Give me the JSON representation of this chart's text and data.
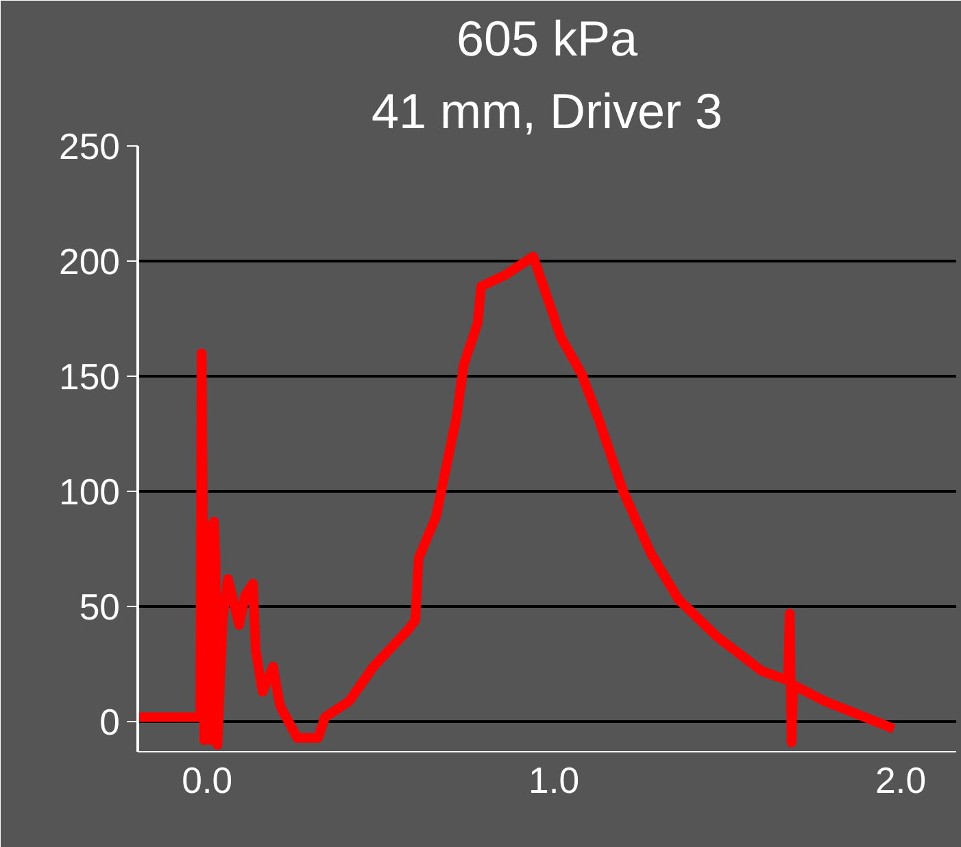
{
  "chart_data": {
    "type": "line",
    "title": "605 kPa",
    "subtitle": "41 mm, Driver 3",
    "x": [
      -0.2,
      -0.02,
      -0.016,
      -0.012,
      -0.008,
      0.0,
      0.01,
      0.02,
      0.024,
      0.03,
      0.045,
      0.06,
      0.08,
      0.092,
      0.11,
      0.132,
      0.14,
      0.16,
      0.19,
      0.21,
      0.26,
      0.32,
      0.34,
      0.41,
      0.48,
      0.53,
      0.58,
      0.6,
      0.61,
      0.66,
      0.69,
      0.72,
      0.74,
      0.78,
      0.79,
      0.86,
      0.94,
      0.97,
      1.02,
      1.08,
      1.13,
      1.2,
      1.28,
      1.36,
      1.47,
      1.6,
      1.675,
      1.68,
      1.685,
      1.69,
      1.78,
      1.98
    ],
    "series": [
      {
        "color": "#ff0000",
        "values": [
          2,
          2,
          160,
          95,
          -8,
          85,
          -8,
          87,
          70,
          -10,
          45,
          62,
          50,
          42,
          55,
          60,
          31,
          13,
          24,
          7,
          -7,
          -7,
          2,
          9,
          24,
          32,
          40,
          44,
          71,
          89,
          111,
          133,
          155,
          173,
          189,
          194,
          202,
          189,
          167,
          151,
          131,
          100,
          73,
          53,
          37,
          22,
          18,
          47,
          -9,
          16,
          9,
          -3
        ]
      }
    ],
    "xlim": [
      -0.2,
      2.16
    ],
    "ylim": [
      -13,
      250
    ],
    "xticks": [
      {
        "value": 0,
        "label": "0.0"
      },
      {
        "value": 1,
        "label": "1.0"
      },
      {
        "value": 2,
        "label": "2.0"
      }
    ],
    "yticks": [
      0,
      50,
      100,
      150,
      200,
      250
    ],
    "grid": "y",
    "marker": "none",
    "line_style": "solid"
  }
}
